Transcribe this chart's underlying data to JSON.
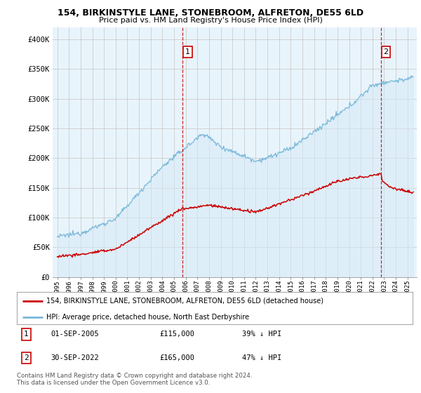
{
  "title1": "154, BIRKINSTYLE LANE, STONEBROOM, ALFRETON, DE55 6LD",
  "title2": "Price paid vs. HM Land Registry's House Price Index (HPI)",
  "ylabel_ticks": [
    "£0",
    "£50K",
    "£100K",
    "£150K",
    "£200K",
    "£250K",
    "£300K",
    "£350K",
    "£400K"
  ],
  "ytick_values": [
    0,
    50000,
    100000,
    150000,
    200000,
    250000,
    300000,
    350000,
    400000
  ],
  "ylim": [
    0,
    420000
  ],
  "hpi_color": "#7ab8d9",
  "hpi_fill_color": "#d6eaf8",
  "price_color": "#cc0000",
  "marker1_date": 2005.75,
  "marker1_price": 115000,
  "marker2_date": 2022.75,
  "marker2_price": 165000,
  "legend_line1": "154, BIRKINSTYLE LANE, STONEBROOM, ALFRETON, DE55 6LD (detached house)",
  "legend_line2": "HPI: Average price, detached house, North East Derbyshire",
  "note1_label": "1",
  "note1_date": "01-SEP-2005",
  "note1_price": "£115,000",
  "note1_hpi": "39% ↓ HPI",
  "note2_label": "2",
  "note2_date": "30-SEP-2022",
  "note2_price": "£165,000",
  "note2_hpi": "47% ↓ HPI",
  "footer": "Contains HM Land Registry data © Crown copyright and database right 2024.\nThis data is licensed under the Open Government Licence v3.0.",
  "bg_color": "#ffffff",
  "grid_color": "#cccccc"
}
